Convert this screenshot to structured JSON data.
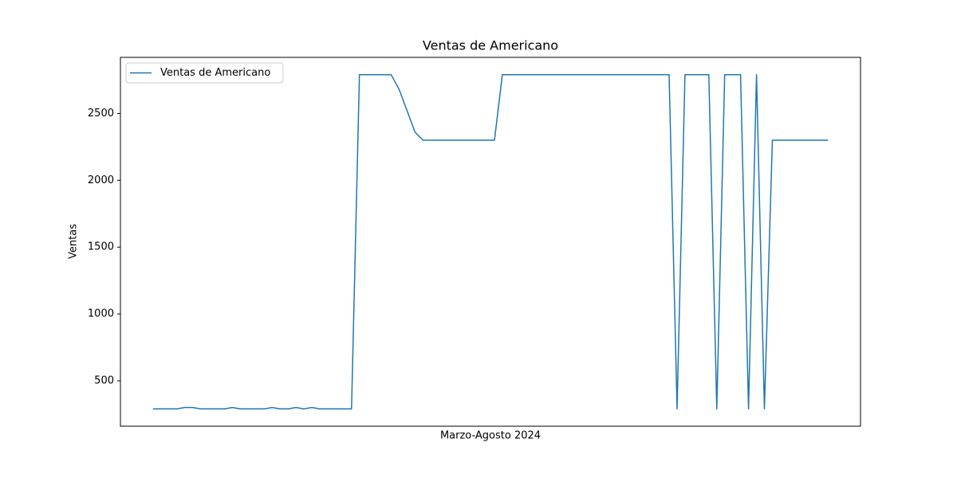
{
  "chart_data": {
    "type": "line",
    "title": "Ventas de Americano",
    "xlabel": "Marzo-Agosto 2024",
    "ylabel": "Ventas",
    "categories": [
      null,
      null,
      null,
      null,
      null,
      null,
      null,
      null,
      null,
      null,
      null,
      null,
      null,
      null,
      null,
      null,
      null,
      null,
      null,
      null,
      null,
      null,
      null,
      null,
      null,
      null,
      null,
      null,
      null,
      null,
      null,
      null,
      null,
      null,
      null,
      null,
      null,
      null,
      null,
      null,
      null,
      null,
      null,
      null,
      null,
      null,
      null,
      null,
      null,
      null,
      null,
      null,
      null,
      null,
      null,
      null,
      null,
      null,
      null,
      null,
      null,
      null,
      null,
      null,
      null,
      null,
      null,
      null,
      null,
      null,
      null,
      null,
      null,
      null,
      null,
      null,
      null,
      null,
      null,
      null,
      null,
      null,
      null,
      null,
      null,
      null
    ],
    "series": [
      {
        "name": "Ventas de Americano",
        "color": "#1f77b4",
        "values": [
          290,
          290,
          290,
          290,
          300,
          300,
          290,
          290,
          290,
          290,
          300,
          290,
          290,
          290,
          290,
          300,
          290,
          290,
          300,
          290,
          300,
          290,
          290,
          290,
          290,
          290,
          2790,
          2790,
          2790,
          2790,
          2790,
          2680,
          2520,
          2360,
          2300,
          2300,
          2300,
          2300,
          2300,
          2300,
          2300,
          2300,
          2300,
          2300,
          2790,
          2790,
          2790,
          2790,
          2790,
          2790,
          2790,
          2790,
          2790,
          2790,
          2790,
          2790,
          2790,
          2790,
          2790,
          2790,
          2790,
          2790,
          2790,
          2790,
          2790,
          2790,
          290,
          2790,
          2790,
          2790,
          2790,
          290,
          2790,
          2790,
          2790,
          290,
          2790,
          290,
          2300,
          2300,
          2300,
          2300,
          2300,
          2300,
          2300,
          2300
        ]
      }
    ],
    "ylim": [
      160,
      2920
    ],
    "yticks": [
      500,
      1000,
      1500,
      2000,
      2500
    ],
    "legend": "upper left"
  }
}
